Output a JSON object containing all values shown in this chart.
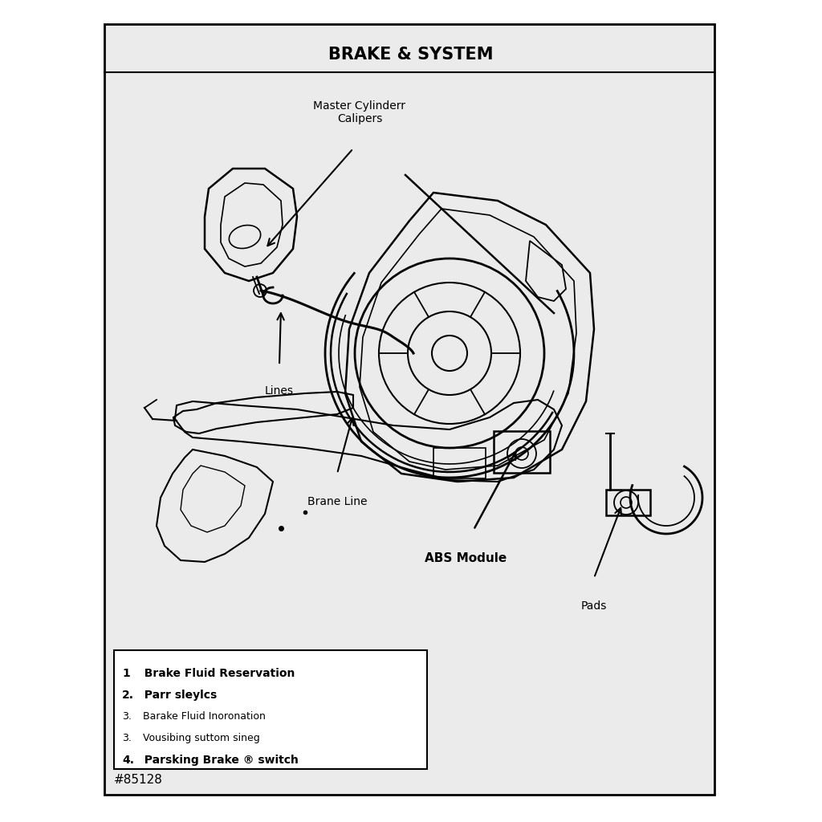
{
  "title": "BRAKE & SYSTEM",
  "bg_outer": "#ffffff",
  "bg_inner": "#ebebeb",
  "border_color": "#000000",
  "text_color": "#000000",
  "labels": {
    "master_cylinder": "Master Cylinderr\nCalipers",
    "lines": "Lines",
    "brane_line": "Brane Line",
    "abs_module": "ABS Module",
    "pads": "Pads"
  },
  "part_number": "#85128",
  "legend_texts": [
    {
      "num": "1",
      "bold": true,
      "text": "  Brake Fluid Reservation"
    },
    {
      "num": "2.",
      "bold": true,
      "text": "  Parr sleylcs"
    },
    {
      "num": "3.",
      "bold": false,
      "text": "  Barake Fluid Inoronation"
    },
    {
      "num": "3.",
      "bold": false,
      "text": "  Vousibing suttom sineg"
    },
    {
      "num": "4.",
      "bold": true,
      "text": "  Parsking Brake ® switch"
    }
  ]
}
